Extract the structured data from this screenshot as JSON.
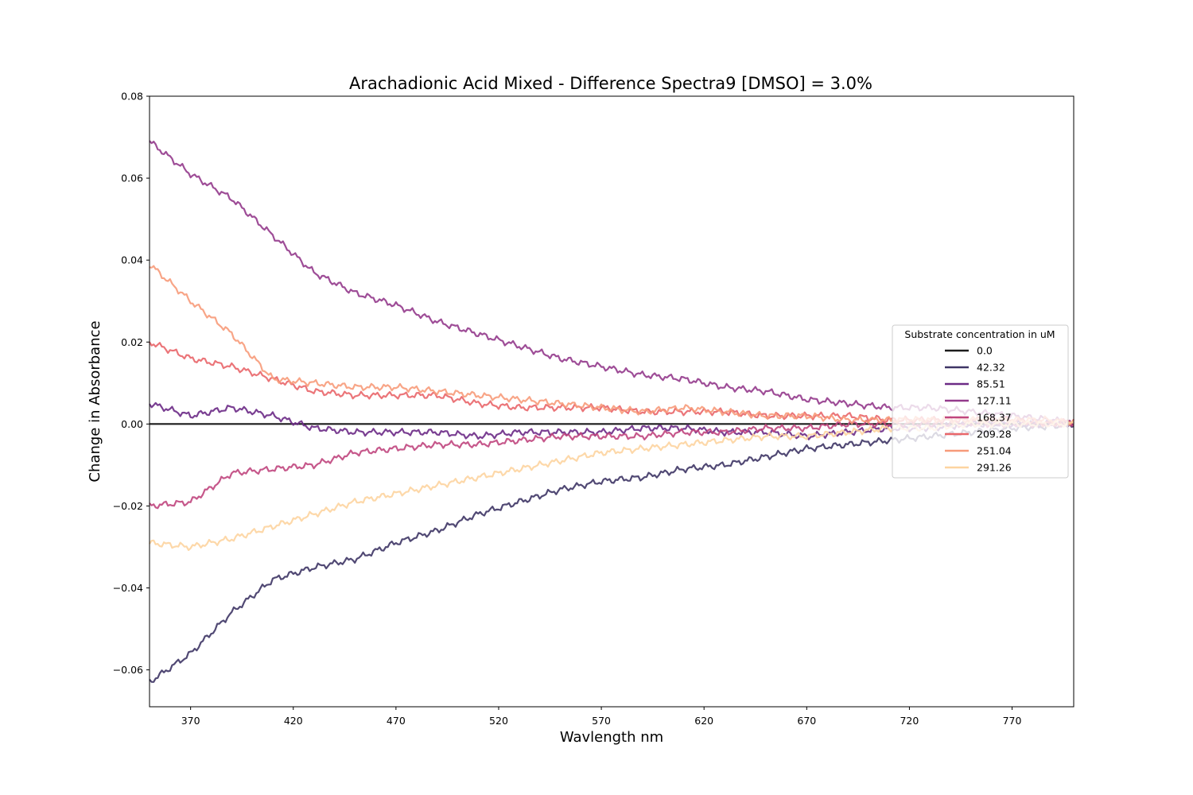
{
  "chart_data": {
    "type": "line",
    "title": "Arachadionic Acid Mixed - Difference Spectra9 [DMSO] = 3.0%",
    "xlabel": "Wavlength nm",
    "ylabel": "Change in Absorbance",
    "xlim": [
      350,
      800
    ],
    "ylim": [
      -0.069,
      0.08
    ],
    "xticks": [
      370,
      420,
      470,
      520,
      570,
      620,
      670,
      720,
      770
    ],
    "xtick_labels": [
      "370",
      "420",
      "470",
      "520",
      "570",
      "620",
      "670",
      "720",
      "770"
    ],
    "yticks": [
      -0.06,
      -0.04,
      -0.02,
      0.0,
      0.02,
      0.04,
      0.06,
      0.08
    ],
    "ytick_labels": [
      "−0.06",
      "−0.04",
      "−0.02",
      "0.00",
      "0.02",
      "0.04",
      "0.06",
      "0.08"
    ],
    "grid": false,
    "legend": {
      "title": "Substrate concentration in uM",
      "placement": "center-right"
    },
    "x": [
      350,
      370,
      390,
      410,
      430,
      450,
      470,
      490,
      510,
      530,
      550,
      570,
      590,
      610,
      630,
      650,
      670,
      690,
      710,
      730,
      750,
      770,
      790,
      800
    ],
    "series": [
      {
        "name": "0.0",
        "color": "#1c1c1c",
        "values": [
          0,
          0,
          0,
          0,
          0,
          0,
          0,
          0,
          0,
          0,
          0,
          0,
          0,
          0,
          0,
          0,
          0,
          0,
          0,
          0,
          0,
          0,
          0,
          0
        ]
      },
      {
        "name": "42.32",
        "color": "#3e3565",
        "values": [
          -0.063,
          -0.056,
          -0.046,
          -0.038,
          -0.035,
          -0.033,
          -0.029,
          -0.026,
          -0.022,
          -0.019,
          -0.016,
          -0.014,
          -0.013,
          -0.011,
          -0.01,
          -0.008,
          -0.006,
          -0.005,
          -0.004,
          -0.003,
          -0.002,
          -0.001,
          -0.0005,
          0
        ]
      },
      {
        "name": "85.51",
        "color": "#6c2a86",
        "values": [
          0.005,
          0.002,
          0.004,
          0.002,
          -0.001,
          -0.002,
          -0.002,
          -0.002,
          -0.003,
          -0.002,
          -0.002,
          -0.002,
          -0.001,
          -0.001,
          -0.002,
          -0.002,
          -0.003,
          -0.002,
          -0.001,
          -0.001,
          0.0,
          0.0,
          0.0,
          0.0
        ]
      },
      {
        "name": "127.11",
        "color": "#933a8c",
        "values": [
          0.069,
          0.061,
          0.055,
          0.046,
          0.037,
          0.032,
          0.029,
          0.025,
          0.022,
          0.019,
          0.016,
          0.014,
          0.012,
          0.011,
          0.009,
          0.008,
          0.006,
          0.005,
          0.004,
          0.004,
          0.003,
          0.002,
          0.001,
          0.0
        ]
      },
      {
        "name": "168.37",
        "color": "#c0467e",
        "values": [
          -0.02,
          -0.019,
          -0.012,
          -0.011,
          -0.01,
          -0.007,
          -0.006,
          -0.005,
          -0.005,
          -0.004,
          -0.003,
          -0.003,
          -0.003,
          -0.002,
          -0.002,
          -0.001,
          -0.001,
          0.0,
          0.0,
          0.0,
          0.0,
          0.0,
          0.0,
          0.0
        ]
      },
      {
        "name": "209.28",
        "color": "#e9666a",
        "values": [
          0.02,
          0.016,
          0.014,
          0.011,
          0.008,
          0.007,
          0.007,
          0.007,
          0.005,
          0.004,
          0.004,
          0.004,
          0.003,
          0.003,
          0.003,
          0.002,
          0.002,
          0.002,
          0.001,
          0.001,
          0.001,
          0.001,
          0.0,
          0.001
        ]
      },
      {
        "name": "251.04",
        "color": "#f79b7a",
        "values": [
          0.039,
          0.03,
          0.022,
          0.011,
          0.01,
          0.009,
          0.009,
          0.008,
          0.007,
          0.006,
          0.005,
          0.004,
          0.003,
          0.004,
          0.003,
          0.002,
          0.002,
          0.001,
          0.001,
          0.001,
          0.001,
          0.001,
          0.001,
          0.0
        ]
      },
      {
        "name": "291.26",
        "color": "#fdd4a0",
        "values": [
          -0.029,
          -0.03,
          -0.028,
          -0.025,
          -0.022,
          -0.019,
          -0.017,
          -0.015,
          -0.013,
          -0.011,
          -0.009,
          -0.007,
          -0.006,
          -0.005,
          -0.004,
          -0.003,
          -0.003,
          -0.002,
          -0.001,
          -0.001,
          0.0,
          0.0,
          0.0,
          0.0
        ]
      }
    ]
  }
}
